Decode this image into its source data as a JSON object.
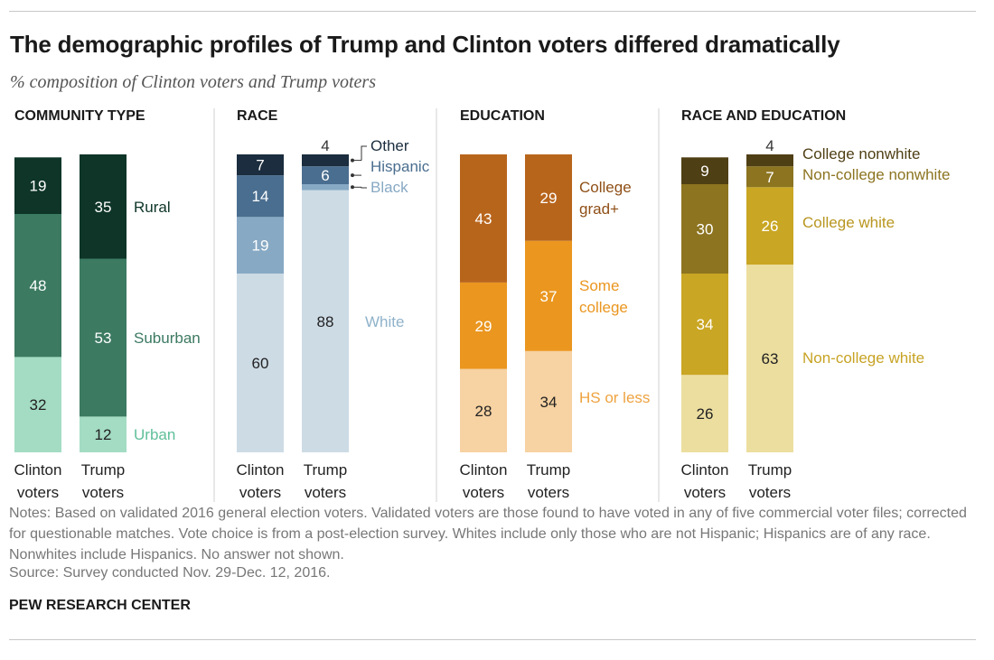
{
  "title": "The demographic profiles of Trump and Clinton voters differed dramatically",
  "subtitle": "% composition of Clinton voters and Trump voters",
  "notes": "Notes: Based on validated 2016 general election voters. Validated voters are those found to have voted in any of five commercial voter files; corrected for questionable matches. Vote choice is from a post-election survey. Whites include only those who are not Hispanic; Hispanics are of any race. Nonwhites include Hispanics. No answer not shown.",
  "source": "Source: Survey conducted Nov. 29-Dec. 12, 2016.",
  "credit": "PEW RESEARCH CENTER",
  "chart_data": [
    {
      "type": "bar",
      "stacked": true,
      "title": "COMMUNITY TYPE",
      "categories": [
        "Clinton voters",
        "Trump voters"
      ],
      "series": [
        {
          "name": "Urban",
          "values": [
            32,
            12
          ],
          "color": "#a3dcc3",
          "text_color": "#222222",
          "label_color": "#5fbf9a"
        },
        {
          "name": "Suburban",
          "values": [
            48,
            53
          ],
          "color": "#3c7a62",
          "text_color": "#ffffff",
          "label_color": "#3c7a62"
        },
        {
          "name": "Rural",
          "values": [
            19,
            35
          ],
          "color": "#0e3528",
          "text_color": "#ffffff",
          "label_color": "#0e3528"
        }
      ]
    },
    {
      "type": "bar",
      "stacked": true,
      "title": "RACE",
      "categories": [
        "Clinton voters",
        "Trump voters"
      ],
      "series": [
        {
          "name": "White",
          "values": [
            60,
            88
          ],
          "color": "#cddbe5",
          "text_color": "#222222",
          "label_color": "#8fb2ca"
        },
        {
          "name": "Black",
          "values": [
            19,
            2
          ],
          "color": "#87a9c4",
          "text_color": "#ffffff",
          "label_color": "#87a9c4"
        },
        {
          "name": "Hispanic",
          "values": [
            14,
            6
          ],
          "color": "#4a6e8f",
          "text_color": "#ffffff",
          "label_color": "#4a6e8f"
        },
        {
          "name": "Other",
          "values": [
            7,
            4
          ],
          "color": "#1b2d3e",
          "text_color": "#ffffff",
          "label_color": "#1b2d3e"
        }
      ]
    },
    {
      "type": "bar",
      "stacked": true,
      "title": "EDUCATION",
      "categories": [
        "Clinton voters",
        "Trump voters"
      ],
      "series": [
        {
          "name": "HS or less",
          "values": [
            28,
            34
          ],
          "color": "#f7d2a2",
          "text_color": "#222222",
          "label_color": "#eea340"
        },
        {
          "name": "Some college",
          "values": [
            29,
            37
          ],
          "color": "#ea961f",
          "text_color": "#ffffff",
          "label_color": "#ea961f"
        },
        {
          "name": "College grad+",
          "values": [
            43,
            29
          ],
          "color": "#b8651c",
          "text_color": "#ffffff",
          "label_color": "#8f4f16"
        }
      ]
    },
    {
      "type": "bar",
      "stacked": true,
      "title": "RACE AND EDUCATION",
      "categories": [
        "Clinton voters",
        "Trump voters"
      ],
      "series": [
        {
          "name": "Non-college white",
          "values": [
            26,
            63
          ],
          "color": "#ecde9f",
          "text_color": "#222222",
          "label_color": "#c7a324"
        },
        {
          "name": "College white",
          "values": [
            34,
            26
          ],
          "color": "#c9a623",
          "text_color": "#ffffff",
          "label_color": "#b8961f"
        },
        {
          "name": "Non-college nonwhite",
          "values": [
            30,
            7
          ],
          "color": "#8c7420",
          "text_color": "#ffffff",
          "label_color": "#8c7420"
        },
        {
          "name": "College nonwhite",
          "values": [
            9,
            4
          ],
          "color": "#4f3f14",
          "text_color": "#ffffff",
          "label_color": "#4f3f14"
        }
      ]
    }
  ]
}
